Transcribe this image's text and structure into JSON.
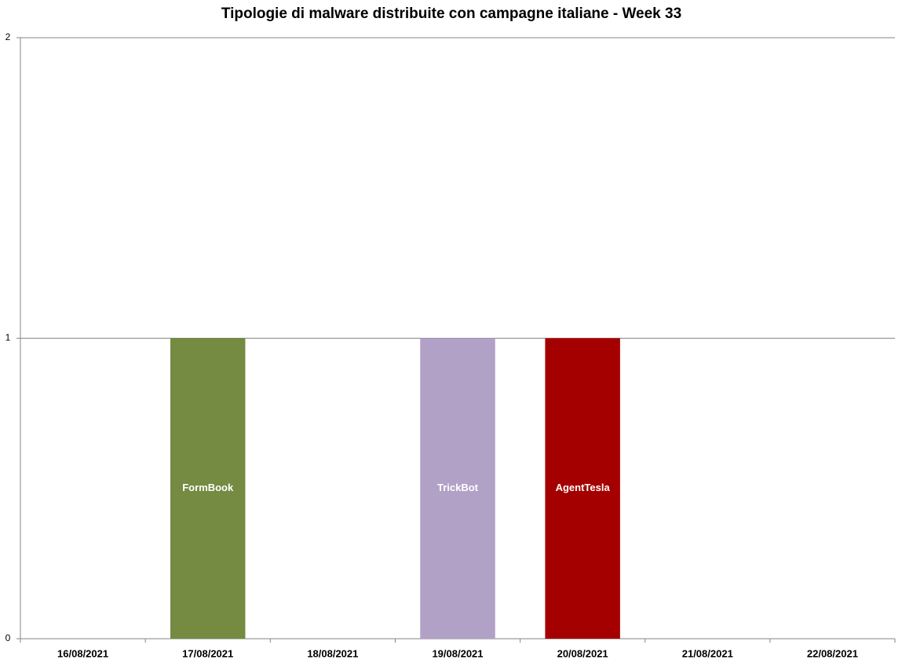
{
  "chart_data": {
    "type": "stacked_bar",
    "title": "Tipologie di malware distribuite con campagne italiane - Week 33",
    "categories": [
      "16/08/2021",
      "17/08/2021",
      "18/08/2021",
      "19/08/2021",
      "20/08/2021",
      "21/08/2021",
      "22/08/2021"
    ],
    "series": [
      {
        "name": "FormBook",
        "color": "#748b41",
        "values": [
          0,
          1,
          0,
          0,
          0,
          0,
          0
        ]
      },
      {
        "name": "TrickBot",
        "color": "#b2a1c7",
        "values": [
          0,
          0,
          0,
          1,
          0,
          0,
          0
        ]
      },
      {
        "name": "AgentTesla",
        "color": "#a50000",
        "values": [
          0,
          0,
          0,
          0,
          1,
          0,
          0
        ]
      }
    ],
    "ylim": [
      0,
      2
    ],
    "yticks": [
      0,
      1,
      2
    ],
    "grid": true
  }
}
